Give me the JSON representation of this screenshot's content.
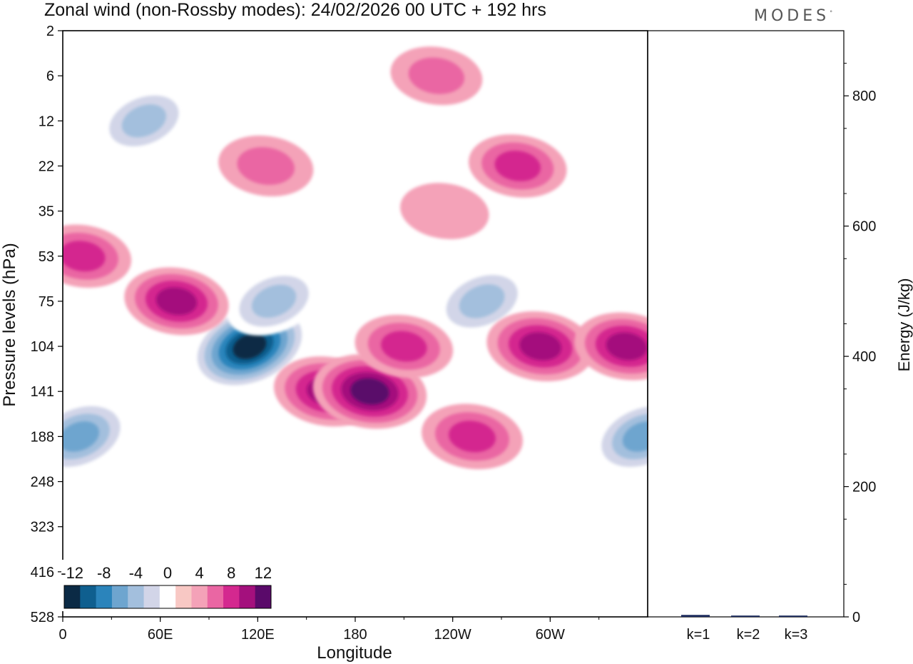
{
  "header": {
    "title": "Zonal wind (non-Rossby modes):  24/02/2026  00 UTC  + 192 hrs",
    "logo": "MODES",
    "logo_mark": "°"
  },
  "chart_data": [
    {
      "type": "heatmap",
      "title": "Zonal wind (non-Rossby modes):  24/02/2026  00 UTC  + 192 hrs",
      "xlabel": "Longitude",
      "ylabel": "Pressure levels (hPa)",
      "x_ticks": [
        "0",
        "60E",
        "120E",
        "180",
        "120W",
        "60W"
      ],
      "x_tick_degrees": [
        0,
        60,
        120,
        180,
        240,
        300
      ],
      "x_range_degrees": [
        0,
        360
      ],
      "y_ticks": [
        "2",
        "6",
        "12",
        "22",
        "35",
        "53",
        "75",
        "104",
        "141",
        "188",
        "248",
        "323",
        "416",
        "528"
      ],
      "colorbar": {
        "labels": [
          "-12",
          "-8",
          "-4",
          "0",
          "4",
          "8",
          "12"
        ],
        "levels": [
          -14,
          -12,
          -10,
          -8,
          -6,
          -4,
          -2,
          2,
          4,
          6,
          8,
          10,
          12,
          14
        ],
        "colors": [
          "#0b2a45",
          "#0f5f8f",
          "#2b84bb",
          "#6ea5cf",
          "#a3bfdd",
          "#d2d5e8",
          "#ffffff",
          "#f8c8c4",
          "#f4a2b8",
          "#ea66a3",
          "#d4288f",
          "#a4107d",
          "#5a0a6a"
        ],
        "placement": "bottom-left"
      },
      "features": [
        {
          "lon": 115,
          "level": "104",
          "value": -14
        },
        {
          "lon": 10,
          "level": "188",
          "value": -9
        },
        {
          "lon": 357,
          "level": "188",
          "value": -9
        },
        {
          "lon": 130,
          "level": "75",
          "value": -6
        },
        {
          "lon": 50,
          "level": "12",
          "value": -6
        },
        {
          "lon": 258,
          "level": "75",
          "value": -7
        },
        {
          "lon": 163,
          "level": "141",
          "value": 9
        },
        {
          "lon": 189,
          "level": "141",
          "value": 11
        },
        {
          "lon": 294,
          "level": "104",
          "value": 9
        },
        {
          "lon": 347,
          "level": "104",
          "value": 8
        },
        {
          "lon": 252,
          "level": "188",
          "value": 7
        },
        {
          "lon": 210,
          "level": "104",
          "value": 6
        },
        {
          "lon": 70,
          "level": "75",
          "value": 8
        },
        {
          "lon": 12,
          "level": "53",
          "value": 6
        },
        {
          "lon": 280,
          "level": "22",
          "value": 6
        },
        {
          "lon": 230,
          "level": "6",
          "value": 4
        },
        {
          "lon": 235,
          "level": "35",
          "value": 3
        },
        {
          "lon": 125,
          "level": "22",
          "value": 5
        }
      ]
    },
    {
      "type": "bar",
      "xlabel": "",
      "ylabel": "Energy (J/kg)",
      "categories": [
        "k=1",
        "k=2",
        "k=3"
      ],
      "values": [
        3,
        2,
        2
      ],
      "ylim": [
        0,
        900
      ],
      "y_ticks": [
        "0",
        "200",
        "400",
        "600",
        "800"
      ],
      "y_tick_values": [
        0,
        200,
        400,
        600,
        800
      ]
    }
  ]
}
